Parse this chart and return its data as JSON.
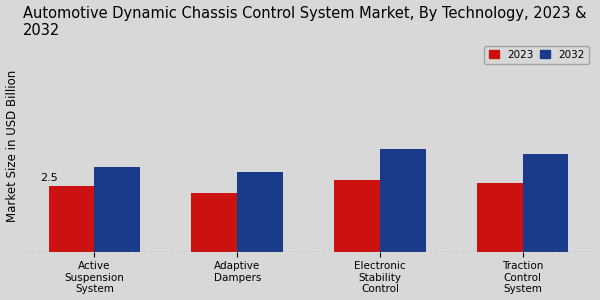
{
  "title": "Automotive Dynamic Chassis Control System Market, By Technology, 2023 &\n2032",
  "ylabel": "Market Size in USD Billion",
  "categories": [
    "Active\nSuspension\nSystem",
    "Adaptive\nDampers",
    "Electronic\nStability\nControl",
    "Traction\nControl\nSystem"
  ],
  "values_2023": [
    2.5,
    2.2,
    2.7,
    2.6
  ],
  "values_2032": [
    3.2,
    3.0,
    3.9,
    3.7
  ],
  "color_2023": "#cc1111",
  "color_2032": "#1a3a8a",
  "annotation_value": "2.5",
  "background_color": "#d8d8d8",
  "legend_labels": [
    "2023",
    "2032"
  ],
  "bar_width": 0.32,
  "ylim": [
    0,
    8
  ],
  "title_fontsize": 10.5,
  "axis_fontsize": 8.5,
  "tick_fontsize": 7.5
}
